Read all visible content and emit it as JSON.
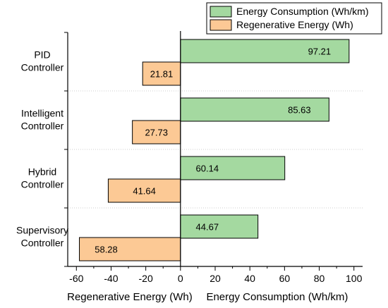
{
  "chart_data": {
    "type": "bar",
    "orientation": "horizontal",
    "categories": [
      [
        "PID",
        "Controller"
      ],
      [
        "Intelligent",
        "Controller"
      ],
      [
        "Hybrid",
        "Controller"
      ],
      [
        "Supervisory",
        "Controller"
      ]
    ],
    "series": [
      {
        "name": "Energy Consumption (Wh/km)",
        "values": [
          97.21,
          85.63,
          60.14,
          44.67
        ],
        "labels": [
          "97.21",
          "85.63",
          "60.14",
          "44.67"
        ],
        "color": "#a4d9a0",
        "direction": "positive"
      },
      {
        "name": "Regenerative Energy (Wh)",
        "values": [
          21.81,
          27.73,
          41.64,
          58.28
        ],
        "labels": [
          "21.81",
          "27.73",
          "41.64",
          "58.28"
        ],
        "color": "#fcc995",
        "direction": "negative"
      }
    ],
    "xlim": [
      -65,
      105
    ],
    "xticks": [
      -60,
      -40,
      -20,
      0,
      20,
      40,
      60,
      80,
      100
    ],
    "xtick_labels": [
      "-60",
      "-40",
      "-20",
      "0",
      "20",
      "40",
      "60",
      "80",
      "100"
    ],
    "xlabel_left": "Regenerative Energy (Wh)",
    "xlabel_right": "Energy Consumption (Wh/km)",
    "legend": "top-right",
    "grid": "horizontal-dotted"
  }
}
